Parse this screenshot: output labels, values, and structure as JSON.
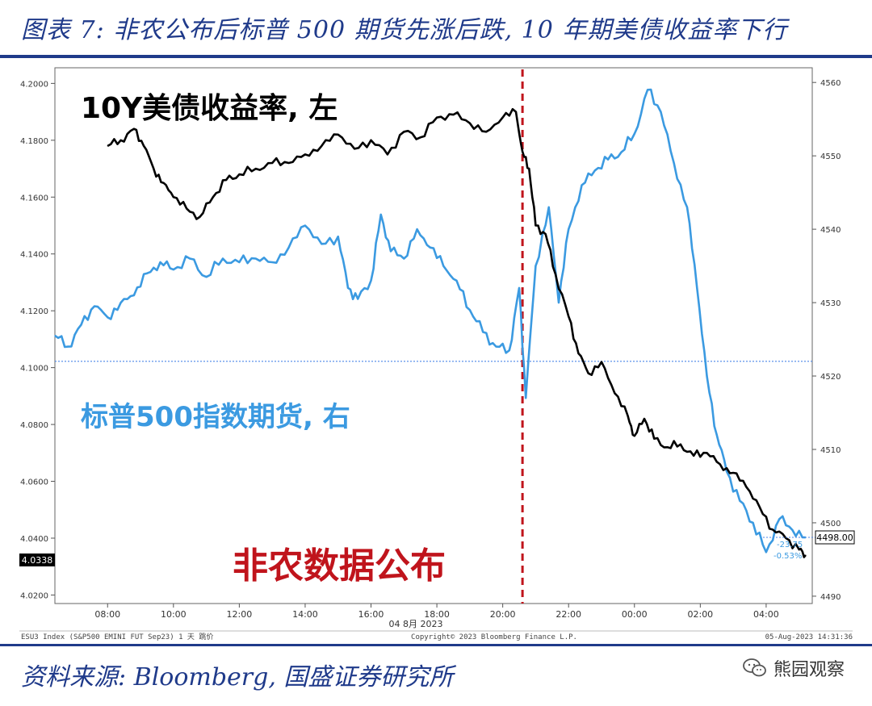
{
  "header": {
    "title": "图表 7:  非农公布后标普 500 期货先涨后跌, 10 年期美债收益率下行"
  },
  "footer": {
    "source": "资料来源:  Bloomberg, 国盛证券研究所",
    "brand": "熊园观察",
    "terminal_left": "ESU3 Index (S&P500 EMINI FUT  Sep23) 1 天  跳价",
    "terminal_center": "Copyright© 2023 Bloomberg Finance L.P.",
    "terminal_right": "05-Aug-2023  14:31:36"
  },
  "chart_data": {
    "type": "line",
    "x_date_label": "04 8月 2023",
    "x_ticks": [
      "08:00",
      "10:00",
      "12:00",
      "14:00",
      "16:00",
      "18:00",
      "20:00",
      "22:00",
      "00:00",
      "02:00",
      "04:00"
    ],
    "x_range_hours": [
      6.4,
      29.4
    ],
    "left_axis": {
      "ticks": [
        "4.2000",
        "4.1800",
        "4.1600",
        "4.1400",
        "4.1200",
        "4.1000",
        "4.0800",
        "4.0600",
        "4.0400",
        "4.0200"
      ],
      "ylim": [
        4.017,
        4.2055
      ]
    },
    "right_axis": {
      "ticks": [
        "4560",
        "4550",
        "4540",
        "4530",
        "4520",
        "4510",
        "4500",
        "4490"
      ],
      "ylim": [
        4489,
        4562
      ]
    },
    "release_time_hours": 20.6,
    "reference_level_right": 4522,
    "annotations": {
      "yield_label": "10Y美债收益率, 左",
      "futures_label": "标普500指数期货, 右",
      "release_label": "非农数据公布"
    },
    "badges": {
      "yield_last": "4.0338",
      "futures_last": "4498.00",
      "futures_change": "-23.75",
      "futures_change_pct": "-0.53%"
    },
    "series": [
      {
        "name": "10Y美债收益率",
        "axis": "left",
        "color": "#000000",
        "points": [
          [
            8.0,
            4.178
          ],
          [
            8.4,
            4.18
          ],
          [
            8.8,
            4.184
          ],
          [
            9.1,
            4.178
          ],
          [
            9.4,
            4.17
          ],
          [
            9.7,
            4.165
          ],
          [
            10.0,
            4.16
          ],
          [
            10.4,
            4.156
          ],
          [
            10.8,
            4.153
          ],
          [
            11.2,
            4.16
          ],
          [
            11.6,
            4.166
          ],
          [
            12.0,
            4.168
          ],
          [
            12.5,
            4.17
          ],
          [
            13.0,
            4.172
          ],
          [
            13.5,
            4.172
          ],
          [
            14.0,
            4.175
          ],
          [
            14.5,
            4.178
          ],
          [
            15.0,
            4.182
          ],
          [
            15.5,
            4.177
          ],
          [
            16.0,
            4.18
          ],
          [
            16.5,
            4.175
          ],
          [
            17.0,
            4.183
          ],
          [
            17.5,
            4.181
          ],
          [
            18.0,
            4.188
          ],
          [
            18.5,
            4.189
          ],
          [
            19.0,
            4.186
          ],
          [
            19.5,
            4.183
          ],
          [
            20.0,
            4.188
          ],
          [
            20.4,
            4.19
          ],
          [
            20.6,
            4.176
          ],
          [
            20.8,
            4.17
          ],
          [
            21.0,
            4.15
          ],
          [
            21.3,
            4.147
          ],
          [
            21.6,
            4.133
          ],
          [
            22.0,
            4.118
          ],
          [
            22.3,
            4.105
          ],
          [
            22.6,
            4.098
          ],
          [
            23.0,
            4.102
          ],
          [
            23.4,
            4.091
          ],
          [
            23.8,
            4.083
          ],
          [
            24.0,
            4.076
          ],
          [
            24.3,
            4.082
          ],
          [
            24.6,
            4.075
          ],
          [
            25.0,
            4.072
          ],
          [
            25.4,
            4.073
          ],
          [
            25.8,
            4.069
          ],
          [
            26.2,
            4.07
          ],
          [
            26.6,
            4.066
          ],
          [
            27.0,
            4.063
          ],
          [
            27.4,
            4.058
          ],
          [
            27.8,
            4.051
          ],
          [
            28.2,
            4.043
          ],
          [
            28.6,
            4.04
          ],
          [
            29.0,
            4.036
          ],
          [
            29.2,
            4.034
          ]
        ]
      },
      {
        "name": "标普500指数期货",
        "axis": "right",
        "color": "#3b9ae1",
        "points": [
          [
            6.4,
            4525.5
          ],
          [
            6.8,
            4524.0
          ],
          [
            7.2,
            4527.0
          ],
          [
            7.6,
            4529.5
          ],
          [
            8.0,
            4528.0
          ],
          [
            8.4,
            4530.0
          ],
          [
            8.8,
            4531.0
          ],
          [
            9.2,
            4534.0
          ],
          [
            9.6,
            4535.5
          ],
          [
            10.0,
            4534.5
          ],
          [
            10.5,
            4536.0
          ],
          [
            11.0,
            4533.5
          ],
          [
            11.5,
            4536.0
          ],
          [
            12.0,
            4535.5
          ],
          [
            12.5,
            4536.0
          ],
          [
            13.0,
            4535.5
          ],
          [
            13.5,
            4537.5
          ],
          [
            14.0,
            4540.5
          ],
          [
            14.5,
            4538.0
          ],
          [
            15.0,
            4539.0
          ],
          [
            15.3,
            4532.0
          ],
          [
            15.6,
            4530.5
          ],
          [
            16.0,
            4533.0
          ],
          [
            16.3,
            4542.0
          ],
          [
            16.6,
            4537.0
          ],
          [
            17.0,
            4536.0
          ],
          [
            17.4,
            4540.0
          ],
          [
            17.8,
            4537.5
          ],
          [
            18.2,
            4535.0
          ],
          [
            18.6,
            4533.0
          ],
          [
            19.0,
            4529.0
          ],
          [
            19.4,
            4526.0
          ],
          [
            19.8,
            4524.0
          ],
          [
            20.2,
            4523.5
          ],
          [
            20.5,
            4532.0
          ],
          [
            20.7,
            4517.0
          ],
          [
            21.0,
            4535.0
          ],
          [
            21.4,
            4543.0
          ],
          [
            21.7,
            4530.0
          ],
          [
            22.0,
            4540.0
          ],
          [
            22.4,
            4546.0
          ],
          [
            22.8,
            4548.0
          ],
          [
            23.2,
            4549.5
          ],
          [
            23.6,
            4550.5
          ],
          [
            24.0,
            4553.0
          ],
          [
            24.4,
            4559.0
          ],
          [
            24.8,
            4556.0
          ],
          [
            25.2,
            4549.0
          ],
          [
            25.6,
            4543.0
          ],
          [
            25.9,
            4532.0
          ],
          [
            26.2,
            4520.0
          ],
          [
            26.5,
            4512.0
          ],
          [
            26.8,
            4507.0
          ],
          [
            27.2,
            4503.0
          ],
          [
            27.6,
            4500.0
          ],
          [
            28.0,
            4496.0
          ],
          [
            28.4,
            4500.5
          ],
          [
            28.8,
            4499.0
          ],
          [
            29.2,
            4498.0
          ]
        ]
      }
    ]
  }
}
